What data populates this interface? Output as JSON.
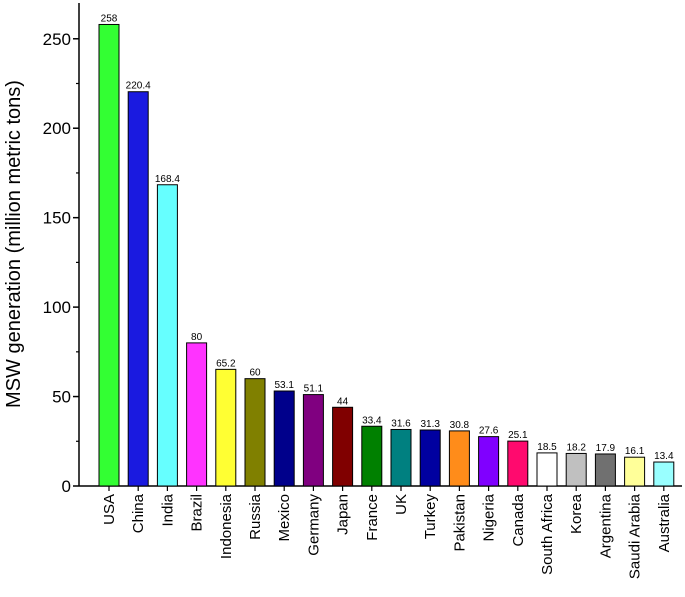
{
  "chart_data": {
    "type": "bar",
    "title": "",
    "xlabel": "",
    "ylabel": "MSW generation (million metric tons)",
    "ylim": [
      0,
      270
    ],
    "yticks": [
      0,
      50,
      100,
      150,
      200,
      250
    ],
    "grid": false,
    "categories": [
      "USA",
      "China",
      "India",
      "Brazil",
      "Indonesia",
      "Russia",
      "Mexico",
      "Germany",
      "Japan",
      "France",
      "UK",
      "Turkey",
      "Pakistan",
      "Nigeria",
      "Canada",
      "South Africa",
      "Korea",
      "Argentina",
      "Saudi Arabia",
      "Australia"
    ],
    "values": [
      258,
      220.4,
      168.4,
      80,
      65.2,
      60,
      53.1,
      51.1,
      44,
      33.4,
      31.6,
      31.3,
      30.8,
      27.6,
      25.1,
      18.5,
      18.2,
      17.9,
      16.1,
      13.4
    ],
    "value_labels": [
      "258",
      "220.4",
      "168.4",
      "80",
      "65.2",
      "60",
      "53.1",
      "51.1",
      "44",
      "33.4",
      "31.6",
      "31.3",
      "30.8",
      "27.6",
      "25.1",
      "18.5",
      "18.2",
      "17.9",
      "16.1",
      "13.4"
    ],
    "colors": [
      "#33ff33",
      "#1a1ae0",
      "#66ffff",
      "#ff33ff",
      "#ffff33",
      "#808000",
      "#00008b",
      "#800080",
      "#800000",
      "#008000",
      "#008080",
      "#0000a0",
      "#ff8c1a",
      "#8000ff",
      "#ff0a6e",
      "#ffffff",
      "#c0c0c0",
      "#707070",
      "#ffff99",
      "#99ffff"
    ]
  }
}
